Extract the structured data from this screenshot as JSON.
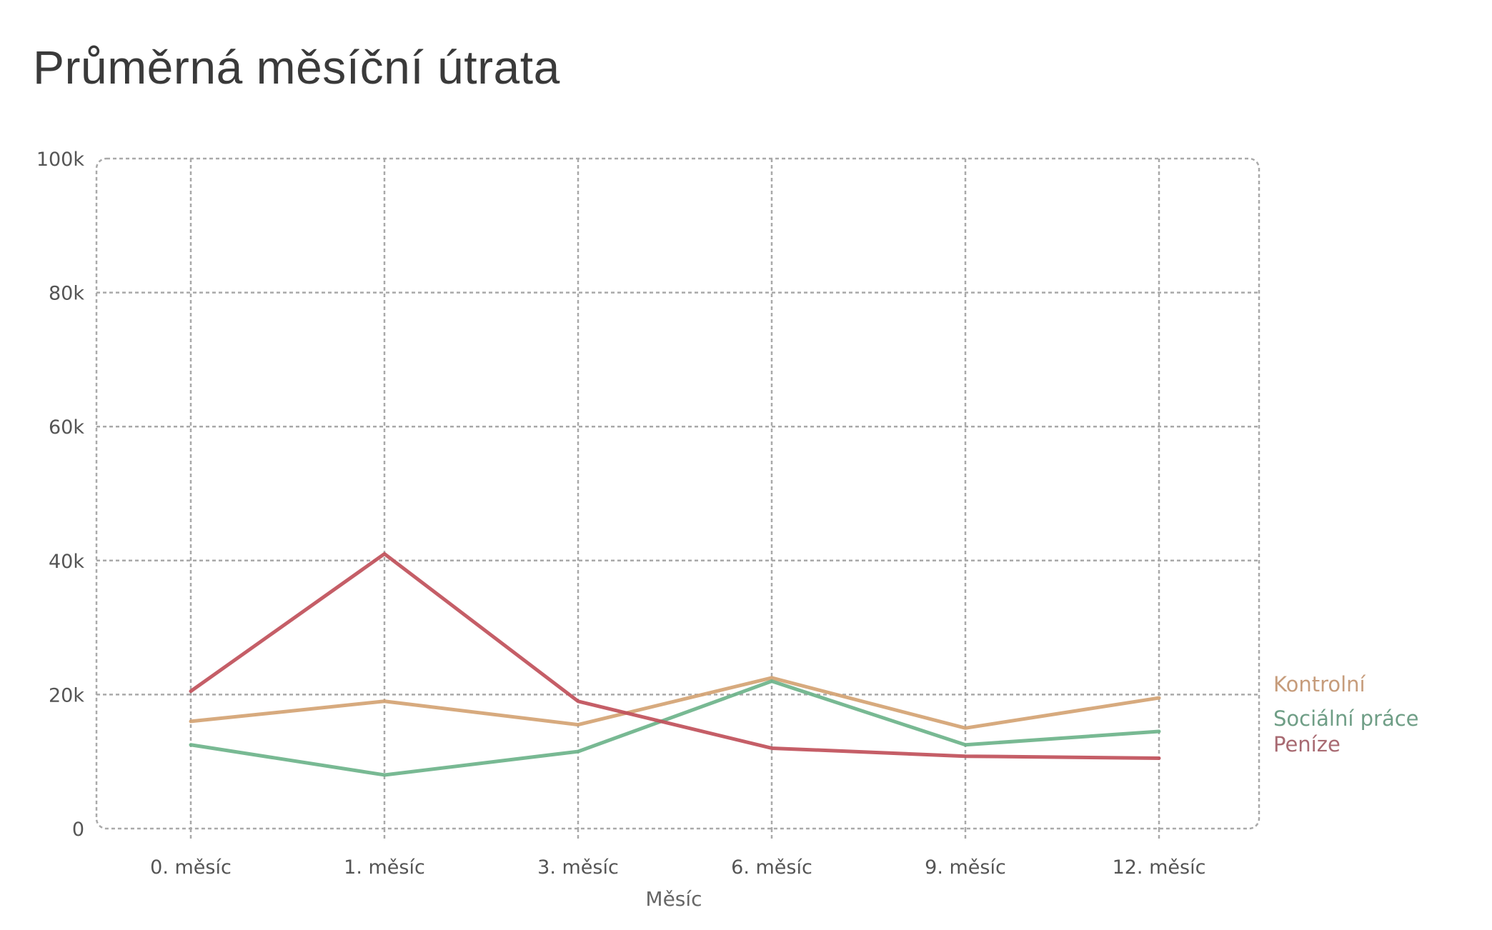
{
  "page": {
    "title": "Průměrná měsíční útrata"
  },
  "chart_data": {
    "type": "line",
    "title": "Průměrná měsíční útrata",
    "xlabel": "Měsíc",
    "ylabel": "",
    "categories": [
      "0. měsíc",
      "1. měsíc",
      "3. měsíc",
      "6. měsíc",
      "9. měsíc",
      "12. měsíc"
    ],
    "ylim": [
      0,
      100000
    ],
    "yticks": [
      0,
      20000,
      40000,
      60000,
      80000,
      100000
    ],
    "ytick_labels": [
      "0",
      "20k",
      "40k",
      "60k",
      "80k",
      "100k"
    ],
    "grid": true,
    "legend_placement": "right, at line ends",
    "series": [
      {
        "name": "Kontrolní",
        "color": "#d4a373",
        "label_color": "#c69c7b",
        "values": [
          16000,
          19000,
          15500,
          22500,
          15000,
          19500
        ]
      },
      {
        "name": "Sociální práce",
        "color": "#6db38a",
        "label_color": "#6f9e86",
        "values": [
          12500,
          8000,
          11500,
          22000,
          12500,
          14500
        ]
      },
      {
        "name": "Peníze",
        "color": "#c0505a",
        "label_color": "#a86a72",
        "values": [
          20500,
          41000,
          19000,
          12000,
          10800,
          10500
        ]
      }
    ]
  }
}
